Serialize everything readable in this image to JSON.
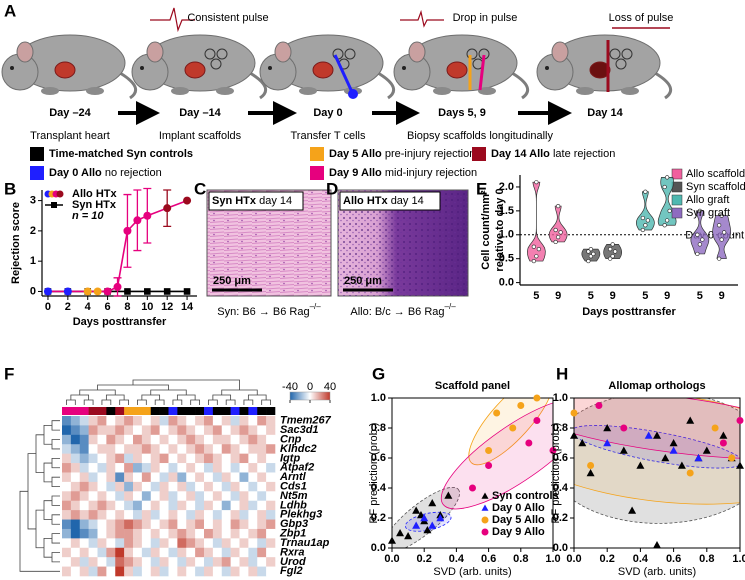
{
  "panel_labels": [
    "A",
    "B",
    "C",
    "D",
    "E",
    "F",
    "G",
    "H"
  ],
  "timeline": {
    "pulse_labels": [
      "Consistent pulse",
      "Drop in pulse",
      "Loss of pulse"
    ],
    "steps": [
      {
        "day": "Day –24",
        "action": "Transplant heart"
      },
      {
        "day": "Day –14",
        "action": "Implant scaffolds"
      },
      {
        "day": "Day 0",
        "action": "Transfer T cells"
      },
      {
        "day": "Days 5, 9",
        "action": "Biopsy scaffolds longitudinally"
      },
      {
        "day": "Day 14"
      }
    ],
    "legend": [
      {
        "label": "Time-matched Syn controls",
        "color": "#000000"
      },
      {
        "label": "Day 0 Allo",
        "note": "no rejection",
        "color": "#1f1fff"
      },
      {
        "label": "Day 5 Allo",
        "note": "pre-injury rejection",
        "color": "#f5a31a"
      },
      {
        "label": "Day 9 Allo",
        "note": "mid-injury rejection",
        "color": "#e6007e"
      },
      {
        "label": "Day 14 Allo",
        "note": "late rejection",
        "color": "#9b0a1e"
      }
    ]
  },
  "histology": [
    {
      "title": "Syn HTx",
      "subtitle": "day 14",
      "scale": "250 μm",
      "caption": "Syn: B6 → B6 Rag",
      "caption_sup": "–/–"
    },
    {
      "title": "Allo HTx",
      "subtitle": "day 14",
      "scale": "250 μm",
      "caption": "Allo: B/c → B6 Rag",
      "caption_sup": "–/–"
    }
  ],
  "chart_data": [
    {
      "type": "line",
      "ylabel": "Rejection score",
      "xlabel": "Days posttransfer",
      "xlim": [
        -0.6,
        15
      ],
      "ylim": [
        -0.15,
        3.35
      ],
      "xticks": [
        0,
        2,
        4,
        6,
        8,
        10,
        12,
        14
      ],
      "yticks": [
        0,
        1,
        2,
        3
      ],
      "annotation": "n = 10",
      "series": [
        {
          "name": "Syn HTx",
          "color": "#000000",
          "marker": "square",
          "x": [
            0,
            2,
            4,
            6,
            8,
            10,
            12,
            14
          ],
          "values": [
            0,
            0,
            0,
            0,
            0,
            0,
            0,
            0
          ]
        },
        {
          "name": "Allo HTx",
          "color": "#e6007e",
          "marker": "circle",
          "x": [
            0,
            2,
            4,
            5,
            6,
            7,
            8,
            9,
            10,
            12,
            14
          ],
          "values": [
            0,
            0,
            0,
            0,
            0,
            0.15,
            2.0,
            2.35,
            2.5,
            2.75,
            3.0
          ],
          "error": [
            0,
            0,
            0,
            0,
            0,
            0.3,
            1.2,
            1.0,
            0.9,
            0.6,
            0
          ],
          "colors": [
            "#1f1fff",
            "#1f1fff",
            "#f5a31a",
            "#f5a31a",
            "#e6007e",
            "#e6007e",
            "#e6007e",
            "#e6007e",
            "#e6007e",
            "#9b0a1e",
            "#9b0a1e"
          ]
        }
      ]
    },
    {
      "type": "violin",
      "ylabel": [
        "Cell count/mm²",
        "relative to day 0"
      ],
      "xlabel": "Days posttransfer",
      "categories": [
        "5",
        "9"
      ],
      "ylim": [
        -0.05,
        2.25
      ],
      "yticks": [
        {
          "value": 0,
          "label": "0.0"
        },
        0.5,
        {
          "value": 1,
          "label": "1.0"
        },
        1.5,
        {
          "value": 2,
          "label": "2.0"
        }
      ],
      "reference": {
        "value": 1,
        "label": "Day 0 count"
      },
      "series": [
        {
          "name": "Allo scaffold",
          "color": "#f0609e",
          "values": [
            [
              0.45,
              0.55,
              0.7,
              0.75,
              2.1
            ],
            [
              0.85,
              0.95,
              1.05,
              1.1,
              1.6
            ]
          ]
        },
        {
          "name": "Syn scaffold",
          "color": "#555555",
          "values": [
            [
              0.45,
              0.55,
              0.6,
              0.65,
              0.7
            ],
            [
              0.5,
              0.55,
              0.65,
              0.7,
              0.8
            ]
          ]
        },
        {
          "name": "Allo graft",
          "color": "#4fb8b0",
          "values": [
            [
              1.1,
              1.2,
              1.3,
              1.35,
              1.9
            ],
            [
              1.2,
              1.3,
              1.5,
              2.0,
              2.2
            ]
          ]
        },
        {
          "name": "Syn graft",
          "color": "#8e6cc0",
          "values": [
            [
              0.6,
              0.8,
              0.9,
              1.0,
              1.5
            ],
            [
              0.5,
              0.9,
              1.05,
              1.2,
              1.4
            ]
          ]
        }
      ]
    },
    {
      "type": "heatmap",
      "rows": [
        "Tmem267",
        "Sac3d1",
        "Cnp",
        "Klhdc2",
        "Igtp",
        "Atpaf2",
        "Arntl",
        "Cds1",
        "Nt5m",
        "Ldhb",
        "Plekhg3",
        "Gbp3",
        "Zbp1",
        "Trnau1ap",
        "Rxra",
        "Urod",
        "Fgl2"
      ],
      "column_colors": [
        "#e6007e",
        "#e6007e",
        "#e6007e",
        "#9b0a1e",
        "#9b0a1e",
        "#000000",
        "#9b0a1e",
        "#f5a31a",
        "#f5a31a",
        "#f5a31a",
        "#000000",
        "#000000",
        "#1f1fff",
        "#000000",
        "#000000",
        "#000000",
        "#1f1fff",
        "#000000",
        "#000000",
        "#1f1fff",
        "#000000",
        "#1f1fff",
        "#000000",
        "#000000"
      ],
      "colorbar_lim": [
        -40,
        40
      ],
      "colorbar_ticks": [
        -40,
        0,
        40
      ],
      "values": [
        [
          -30,
          -20,
          -10,
          10,
          20,
          0,
          10,
          20,
          10,
          0,
          10,
          -10,
          20,
          10,
          0,
          10,
          20,
          0,
          10,
          -10,
          10,
          0,
          20,
          10
        ],
        [
          -40,
          -30,
          -20,
          20,
          10,
          10,
          20,
          10,
          0,
          10,
          20,
          0,
          10,
          20,
          10,
          0,
          10,
          20,
          0,
          10,
          20,
          10,
          0,
          10
        ],
        [
          -20,
          -40,
          -30,
          10,
          0,
          20,
          10,
          0,
          20,
          10,
          0,
          10,
          0,
          10,
          20,
          10,
          0,
          10,
          10,
          0,
          10,
          20,
          10,
          0
        ],
        [
          -10,
          -20,
          -30,
          0,
          10,
          10,
          0,
          10,
          10,
          20,
          10,
          0,
          10,
          0,
          10,
          20,
          10,
          0,
          20,
          10,
          0,
          10,
          10,
          20
        ],
        [
          10,
          -10,
          -20,
          -10,
          0,
          10,
          20,
          -10,
          10,
          0,
          10,
          20,
          0,
          10,
          0,
          10,
          20,
          10,
          0,
          10,
          20,
          0,
          10,
          0
        ],
        [
          20,
          10,
          -10,
          0,
          -10,
          10,
          0,
          20,
          -20,
          -10,
          10,
          0,
          -10,
          0,
          10,
          0,
          -10,
          10,
          0,
          -10,
          0,
          10,
          0,
          -10
        ],
        [
          10,
          0,
          10,
          -10,
          0,
          10,
          -30,
          10,
          0,
          20,
          0,
          -10,
          10,
          -20,
          0,
          10,
          0,
          -10,
          10,
          0,
          -20,
          0,
          10,
          0
        ],
        [
          0,
          10,
          20,
          10,
          0,
          -10,
          10,
          -20,
          10,
          0,
          -10,
          10,
          0,
          10,
          -10,
          0,
          10,
          0,
          -10,
          10,
          0,
          -10,
          0,
          10
        ],
        [
          10,
          20,
          10,
          0,
          10,
          0,
          -10,
          10,
          0,
          -20,
          0,
          10,
          -10,
          0,
          10,
          -10,
          0,
          10,
          0,
          -10,
          10,
          0,
          -10,
          0
        ],
        [
          20,
          10,
          0,
          10,
          20,
          10,
          0,
          -10,
          -20,
          0,
          10,
          0,
          -10,
          10,
          0,
          -10,
          10,
          0,
          -20,
          0,
          10,
          -10,
          0,
          10
        ],
        [
          10,
          20,
          10,
          20,
          10,
          0,
          10,
          0,
          -10,
          10,
          -10,
          0,
          10,
          0,
          -10,
          10,
          0,
          -10,
          0,
          10,
          -10,
          0,
          10,
          -10
        ],
        [
          -30,
          -40,
          -20,
          -10,
          0,
          10,
          20,
          30,
          20,
          10,
          0,
          10,
          20,
          0,
          10,
          20,
          0,
          10,
          0,
          20,
          10,
          0,
          10,
          20
        ],
        [
          -20,
          -40,
          -30,
          -20,
          0,
          10,
          20,
          20,
          10,
          0,
          10,
          0,
          10,
          20,
          10,
          0,
          20,
          10,
          0,
          10,
          0,
          10,
          20,
          0
        ],
        [
          0,
          10,
          0,
          -10,
          10,
          0,
          -10,
          20,
          10,
          0,
          -10,
          10,
          0,
          30,
          20,
          10,
          0,
          -10,
          10,
          0,
          10,
          0,
          -10,
          10
        ],
        [
          10,
          0,
          10,
          0,
          -10,
          20,
          40,
          10,
          0,
          -10,
          10,
          0,
          -10,
          10,
          0,
          20,
          10,
          0,
          -10,
          10,
          0,
          -10,
          20,
          0
        ],
        [
          0,
          10,
          -10,
          10,
          0,
          -10,
          30,
          20,
          10,
          0,
          -10,
          10,
          0,
          -10,
          10,
          0,
          -10,
          10,
          20,
          0,
          10,
          -10,
          0,
          10
        ],
        [
          10,
          0,
          10,
          -10,
          20,
          0,
          40,
          10,
          -10,
          0,
          10,
          -10,
          0,
          10,
          0,
          -10,
          10,
          0,
          -10,
          10,
          0,
          10,
          -10,
          0
        ]
      ]
    },
    {
      "type": "scatter",
      "title": "Scaffold panel",
      "xlabel": "SVD (arb. units)",
      "ylabel": "RF prediction (prob.)",
      "xlim": [
        0,
        1
      ],
      "ylim": [
        0,
        1
      ],
      "xticks": [
        {
          "value": 0,
          "label": "0.0"
        },
        0.2,
        0.4,
        0.6,
        0.8,
        {
          "value": 1,
          "label": "1.0"
        }
      ],
      "yticks": [
        {
          "value": 0,
          "label": "0.0"
        },
        0.2,
        0.4,
        0.6,
        0.8,
        {
          "value": 1,
          "label": "1.0"
        }
      ],
      "legend": "lower right",
      "series": [
        {
          "name": "Syn controls",
          "color": "#000000",
          "marker": "triangle",
          "x": [
            0.0,
            0.05,
            0.1,
            0.15,
            0.18,
            0.2,
            0.22,
            0.25,
            0.3,
            0.35
          ],
          "values": [
            0.05,
            0.1,
            0.08,
            0.25,
            0.22,
            0.18,
            0.12,
            0.3,
            0.22,
            0.35
          ]
        },
        {
          "name": "Day 0 Allo",
          "color": "#1f1fff",
          "marker": "triangle",
          "x": [
            0.15,
            0.2,
            0.25,
            0.3
          ],
          "values": [
            0.15,
            0.2,
            0.15,
            0.2
          ]
        },
        {
          "name": "Day 5 Allo",
          "color": "#f5a31a",
          "marker": "circle",
          "x": [
            0.6,
            0.65,
            0.75,
            0.8,
            0.9
          ],
          "values": [
            0.65,
            0.9,
            0.8,
            0.95,
            1.0
          ]
        },
        {
          "name": "Day 9 Allo",
          "color": "#e6007e",
          "marker": "circle",
          "x": [
            0.5,
            0.6,
            0.85,
            0.9,
            1.0
          ],
          "values": [
            0.4,
            0.55,
            0.7,
            0.85,
            0.65
          ]
        }
      ]
    },
    {
      "type": "scatter",
      "title": "Allomap orthologs",
      "xlabel": "SVD (arb. units)",
      "ylabel": "RF prediction (prob.)",
      "xlim": [
        0,
        1
      ],
      "ylim": [
        0,
        1
      ],
      "xticks": [
        {
          "value": 0,
          "label": "0.0"
        },
        0.2,
        0.4,
        0.6,
        0.8,
        {
          "value": 1,
          "label": "1.0"
        }
      ],
      "yticks": [
        {
          "value": 0,
          "label": "0.0"
        },
        0.2,
        0.4,
        0.6,
        0.8,
        {
          "value": 1,
          "label": "1.0"
        }
      ],
      "series": [
        {
          "name": "Syn controls",
          "color": "#000000",
          "marker": "triangle",
          "x": [
            0.0,
            0.05,
            0.1,
            0.2,
            0.3,
            0.35,
            0.4,
            0.5,
            0.55,
            0.6,
            0.65,
            0.7,
            0.75,
            0.8,
            0.9,
            0.95,
            1.0,
            0.5
          ],
          "values": [
            0.75,
            0.7,
            0.5,
            0.8,
            0.65,
            0.25,
            0.55,
            0.75,
            0.6,
            0.7,
            0.55,
            0.85,
            0.6,
            0.65,
            0.75,
            0.6,
            0.55,
            0.02
          ]
        },
        {
          "name": "Day 0 Allo",
          "color": "#1f1fff",
          "marker": "triangle",
          "x": [
            0.2,
            0.45,
            0.6,
            0.75
          ],
          "values": [
            0.7,
            0.75,
            0.65,
            0.6
          ]
        },
        {
          "name": "Day 5 Allo",
          "color": "#f5a31a",
          "marker": "circle",
          "x": [
            0.0,
            0.1,
            0.7,
            0.85,
            0.95
          ],
          "values": [
            0.9,
            0.55,
            0.5,
            0.8,
            0.6
          ]
        },
        {
          "name": "Day 9 Allo",
          "color": "#e6007e",
          "marker": "circle",
          "x": [
            0.15,
            0.3,
            0.9,
            1.0
          ],
          "values": [
            0.95,
            0.8,
            0.7,
            0.85
          ]
        }
      ]
    }
  ]
}
